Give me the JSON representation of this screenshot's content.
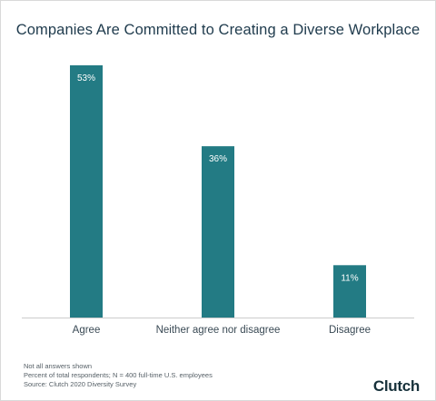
{
  "title": "Companies Are Committed to Creating a Diverse Workplace",
  "colors": {
    "bar": "#237b84",
    "bar_label": "#ffffff",
    "axis": "#cccccc",
    "title": "#1f3b4d",
    "brand": "#17313b",
    "brand_accent": "#ef4335"
  },
  "chart_data": {
    "type": "bar",
    "title": "Companies Are Committed to Creating a Diverse Workplace",
    "categories": [
      "Agree",
      "Neither agree nor disagree",
      "Disagree"
    ],
    "values": [
      53,
      36,
      11
    ],
    "value_labels": [
      "53%",
      "36%",
      "11%"
    ],
    "unit": "%",
    "ylim": [
      0,
      53
    ],
    "grid": false,
    "legend": "none"
  },
  "footnotes": [
    "Not all answers shown",
    "Percent of total respondents; N = 400 full-time U.S. employees",
    "Source: Clutch 2020 Diversity Survey"
  ],
  "brand": {
    "main": "Clutch",
    "dot": ""
  }
}
